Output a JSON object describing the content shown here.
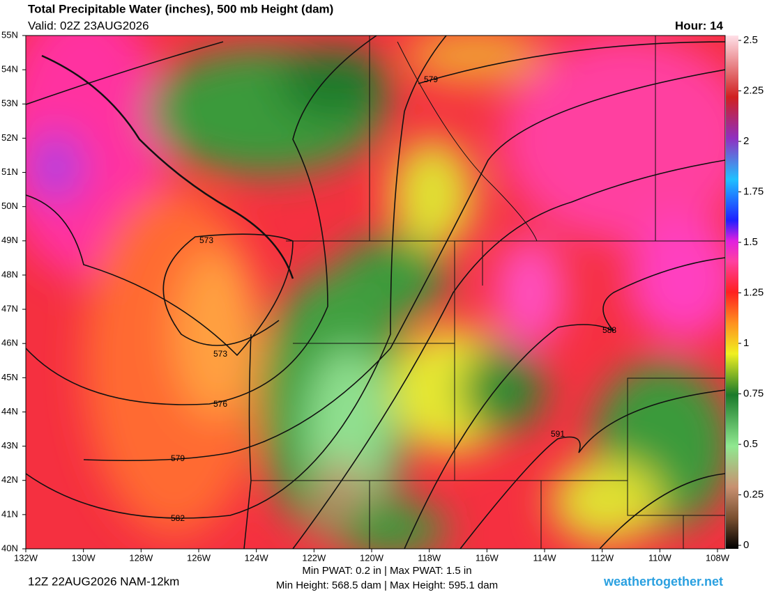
{
  "header": {
    "title": "Total Precipitable Water (inches), 500 mb Height (dam)",
    "valid": "Valid: 02Z 23AUG2026",
    "hour": "Hour: 14"
  },
  "map": {
    "lat_labels": [
      "55N",
      "54N",
      "53N",
      "52N",
      "51N",
      "50N",
      "49N",
      "48N",
      "47N",
      "46N",
      "45N",
      "44N",
      "43N",
      "42N",
      "41N",
      "40N"
    ],
    "lon_labels": [
      "132W",
      "130W",
      "128W",
      "126W",
      "124W",
      "122W",
      "120W",
      "118W",
      "116W",
      "114W",
      "112W",
      "110W",
      "108W"
    ],
    "contour_labels": [
      "579",
      "573",
      "573",
      "576",
      "579",
      "582",
      "588",
      "591"
    ]
  },
  "colorbar": {
    "ticks": [
      2.5,
      2.25,
      2,
      1.75,
      1.5,
      1.25,
      1,
      0.75,
      0.5,
      0.25,
      0
    ]
  },
  "footer": {
    "run": "12Z 22AUG2026 NAM-12km",
    "pwat": "Min PWAT:   0.2 in | Max PWAT:   1.5 in",
    "height": "Min Height: 568.5 dam | Max Height: 595.1 dam",
    "site": "weathertogether.net"
  }
}
